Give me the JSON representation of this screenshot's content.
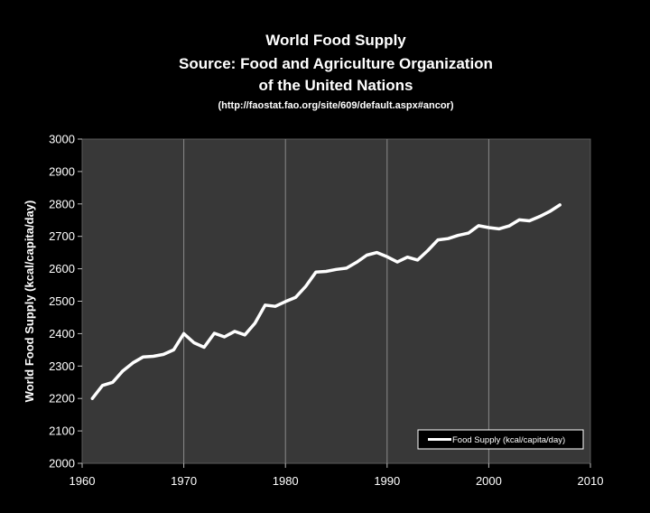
{
  "colors": {
    "background": "#000000",
    "plot_background": "#383838",
    "grid": "#8a8a8a",
    "line": "#ffffff",
    "text": "#ffffff"
  },
  "chart_data": {
    "type": "line",
    "title_lines": [
      "World Food Supply",
      "Source: Food and Agriculture Organization",
      "of the United Nations"
    ],
    "source_url": "(http://faostat.fao.org/site/609/default.aspx#ancor)",
    "xlabel": "",
    "ylabel": "World Food Supply (kcal/capita/day)",
    "xlim": [
      1960,
      2010
    ],
    "ylim": [
      2000,
      3000
    ],
    "x_ticks": [
      1960,
      1970,
      1980,
      1990,
      2000,
      2010
    ],
    "y_ticks": [
      2000,
      2100,
      2200,
      2300,
      2400,
      2500,
      2600,
      2700,
      2800,
      2900,
      3000
    ],
    "grid": "vertical",
    "legend_position": "bottom-right",
    "series": [
      {
        "name": "Food Supply (kcal/capita/day)",
        "x": [
          1961,
          1962,
          1963,
          1964,
          1965,
          1966,
          1967,
          1968,
          1969,
          1970,
          1971,
          1972,
          1973,
          1974,
          1975,
          1976,
          1977,
          1978,
          1979,
          1980,
          1981,
          1982,
          1983,
          1984,
          1985,
          1986,
          1987,
          1988,
          1989,
          1990,
          1991,
          1992,
          1993,
          1994,
          1995,
          1996,
          1997,
          1998,
          1999,
          2000,
          2001,
          2002,
          2003,
          2004,
          2005,
          2006,
          2007
        ],
        "values": [
          2200,
          2240,
          2250,
          2285,
          2310,
          2328,
          2330,
          2336,
          2350,
          2400,
          2372,
          2358,
          2401,
          2390,
          2407,
          2396,
          2432,
          2488,
          2484,
          2499,
          2512,
          2546,
          2590,
          2592,
          2598,
          2602,
          2620,
          2642,
          2650,
          2637,
          2621,
          2636,
          2627,
          2656,
          2689,
          2693,
          2703,
          2710,
          2733,
          2727,
          2723,
          2732,
          2751,
          2748,
          2761,
          2777,
          2797
        ]
      }
    ]
  }
}
